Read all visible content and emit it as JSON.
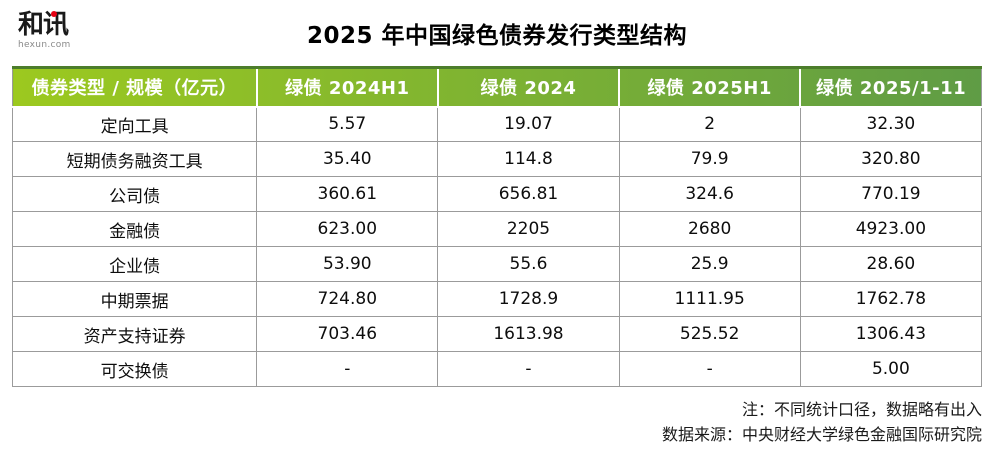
{
  "logo": {
    "text": "和讯",
    "domain": "hexun.com",
    "dot_color": "#e60012"
  },
  "title": "2025 年中国绿色债券发行类型结构",
  "colors": {
    "header_gradient_left": "#9cc91f",
    "header_gradient_right": "#5f9c45",
    "header_top_border": "#4c7d2b",
    "grid_border": "#9b9b9b",
    "header_text": "#ffffff"
  },
  "table": {
    "columns": [
      "债券类型 / 规模（亿元）",
      "绿债 2024H1",
      "绿债 2024",
      "绿债 2025H1",
      "绿债 2025/1-11"
    ],
    "rows": [
      {
        "label": "定向工具",
        "values": [
          "5.57",
          "19.07",
          "2",
          "32.30"
        ]
      },
      {
        "label": "短期债务融资工具",
        "values": [
          "35.40",
          "114.8",
          "79.9",
          "320.80"
        ]
      },
      {
        "label": "公司债",
        "values": [
          "360.61",
          "656.81",
          "324.6",
          "770.19"
        ]
      },
      {
        "label": "金融债",
        "values": [
          "623.00",
          "2205",
          "2680",
          "4923.00"
        ]
      },
      {
        "label": "企业债",
        "values": [
          "53.90",
          "55.6",
          "25.9",
          "28.60"
        ]
      },
      {
        "label": "中期票据",
        "values": [
          "724.80",
          "1728.9",
          "1111.95",
          "1762.78"
        ]
      },
      {
        "label": "资产支持证券",
        "values": [
          "703.46",
          "1613.98",
          "525.52",
          "1306.43"
        ]
      },
      {
        "label": "可交换债",
        "values": [
          "-",
          "-",
          "-",
          "5.00"
        ]
      }
    ]
  },
  "footer": {
    "note": "注：不同统计口径，数据略有出入",
    "source": "数据来源：中央财经大学绿色金融国际研究院"
  }
}
